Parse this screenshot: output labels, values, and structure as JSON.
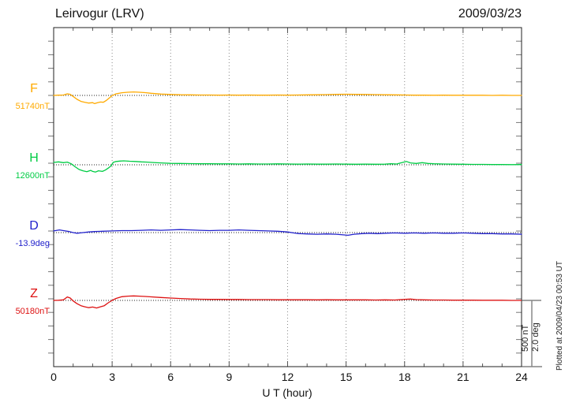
{
  "header": {
    "title": "Leirvogur (LRV)",
    "date": "2009/03/23"
  },
  "footer": {
    "plotted_at": "Plotted at 2009/04/23 00:53 UT"
  },
  "chart_data": {
    "type": "line",
    "title": "Leirvogur (LRV)",
    "date": "2009/03/23",
    "xlabel": "U T (hour)",
    "x_range": [
      0,
      24
    ],
    "x_major_ticks": [
      "0",
      "3",
      "6",
      "9",
      "12",
      "15",
      "18",
      "21",
      "24"
    ],
    "x_minor_step_hours": 1,
    "grid": "dotted vertical lines at 3-hour intervals",
    "scale_bar": {
      "label_nT": "500 nT",
      "label_deg": "2.0 deg",
      "span_nT": 500,
      "span_deg": 2.0
    },
    "colors": {
      "frame": "#222222",
      "grid": "#888888",
      "baseline": "#222222",
      "axis_tick": "#555555",
      "y_tick": "#777777",
      "scalebar": "#888888",
      "scalebar_cap": "#444444"
    },
    "series": [
      {
        "id": "F",
        "label": "F",
        "baseline_label": "51740nT",
        "unit": "nT",
        "color": "#FFAA00",
        "points": [
          [
            0,
            0
          ],
          [
            0.25,
            2
          ],
          [
            0.5,
            3
          ],
          [
            0.7,
            12
          ],
          [
            0.85,
            8
          ],
          [
            1.0,
            -8
          ],
          [
            1.2,
            -30
          ],
          [
            1.4,
            -45
          ],
          [
            1.6,
            -52
          ],
          [
            1.8,
            -58
          ],
          [
            2.0,
            -55
          ],
          [
            2.1,
            -62
          ],
          [
            2.25,
            -55
          ],
          [
            2.4,
            -50
          ],
          [
            2.55,
            -52
          ],
          [
            2.7,
            -38
          ],
          [
            2.85,
            -20
          ],
          [
            3.0,
            -2
          ],
          [
            3.2,
            12
          ],
          [
            3.5,
            20
          ],
          [
            3.8,
            24
          ],
          [
            4.1,
            26
          ],
          [
            4.4,
            24
          ],
          [
            4.7,
            21
          ],
          [
            5.0,
            16
          ],
          [
            5.5,
            10
          ],
          [
            6.0,
            7
          ],
          [
            6.5,
            5
          ],
          [
            7.0,
            4
          ],
          [
            7.5,
            3
          ],
          [
            8,
            3
          ],
          [
            8.5,
            2
          ],
          [
            9,
            3
          ],
          [
            9.5,
            2
          ],
          [
            10,
            3
          ],
          [
            10.5,
            2
          ],
          [
            11,
            2
          ],
          [
            11.5,
            3
          ],
          [
            12,
            2
          ],
          [
            12.5,
            3
          ],
          [
            13,
            4
          ],
          [
            13.5,
            5
          ],
          [
            14,
            6
          ],
          [
            14.5,
            8
          ],
          [
            15,
            9
          ],
          [
            15.5,
            8
          ],
          [
            16,
            7
          ],
          [
            16.5,
            6
          ],
          [
            17,
            5
          ],
          [
            17.5,
            4
          ],
          [
            18,
            3
          ],
          [
            18.5,
            2
          ],
          [
            19,
            2
          ],
          [
            19.5,
            1
          ],
          [
            20,
            2
          ],
          [
            20.5,
            1
          ],
          [
            21,
            1
          ],
          [
            21.5,
            1
          ],
          [
            22,
            1
          ],
          [
            22.5,
            0
          ],
          [
            23,
            1
          ],
          [
            23.5,
            0
          ],
          [
            24,
            0
          ]
        ]
      },
      {
        "id": "H",
        "label": "H",
        "baseline_label": "12600nT",
        "unit": "nT",
        "color": "#00CC44",
        "points": [
          [
            0,
            18
          ],
          [
            0.25,
            22
          ],
          [
            0.5,
            16
          ],
          [
            0.7,
            20
          ],
          [
            0.9,
            8
          ],
          [
            1.1,
            -15
          ],
          [
            1.3,
            -35
          ],
          [
            1.5,
            -45
          ],
          [
            1.7,
            -52
          ],
          [
            1.9,
            -42
          ],
          [
            2.0,
            -50
          ],
          [
            2.15,
            -55
          ],
          [
            2.3,
            -45
          ],
          [
            2.5,
            -50
          ],
          [
            2.65,
            -40
          ],
          [
            2.8,
            -25
          ],
          [
            2.95,
            -8
          ],
          [
            3.05,
            18
          ],
          [
            3.2,
            25
          ],
          [
            3.4,
            28
          ],
          [
            3.6,
            30
          ],
          [
            3.9,
            27
          ],
          [
            4.2,
            25
          ],
          [
            4.5,
            22
          ],
          [
            4.8,
            20
          ],
          [
            5.1,
            17
          ],
          [
            5.5,
            14
          ],
          [
            6,
            11
          ],
          [
            6.5,
            10
          ],
          [
            7,
            9
          ],
          [
            7.5,
            8
          ],
          [
            8,
            8
          ],
          [
            8.5,
            7
          ],
          [
            9,
            7
          ],
          [
            9.5,
            6
          ],
          [
            10,
            7
          ],
          [
            10.5,
            6
          ],
          [
            11,
            6
          ],
          [
            11.5,
            7
          ],
          [
            12,
            6
          ],
          [
            12.5,
            5
          ],
          [
            13,
            6
          ],
          [
            13.5,
            5
          ],
          [
            14,
            5
          ],
          [
            14.5,
            6
          ],
          [
            15,
            5
          ],
          [
            15.5,
            4
          ],
          [
            16,
            5
          ],
          [
            16.5,
            4
          ],
          [
            17,
            5
          ],
          [
            17.3,
            8
          ],
          [
            17.6,
            6
          ],
          [
            17.9,
            18
          ],
          [
            18.1,
            25
          ],
          [
            18.3,
            14
          ],
          [
            18.6,
            10
          ],
          [
            18.9,
            16
          ],
          [
            19.2,
            10
          ],
          [
            19.5,
            8
          ],
          [
            20,
            6
          ],
          [
            20.5,
            5
          ],
          [
            21,
            4
          ],
          [
            21.5,
            3
          ],
          [
            22,
            3
          ],
          [
            22.5,
            2
          ],
          [
            23,
            2
          ],
          [
            23.5,
            1
          ],
          [
            24,
            2
          ]
        ]
      },
      {
        "id": "D",
        "label": "D",
        "baseline_label": "-13.9deg",
        "unit": "deg",
        "color": "#2222CC",
        "points": [
          [
            0,
            0.05
          ],
          [
            0.3,
            0.08
          ],
          [
            0.5,
            0.06
          ],
          [
            0.8,
            0.03
          ],
          [
            1.0,
            0.0
          ],
          [
            1.2,
            -0.02
          ],
          [
            1.5,
            0.0
          ],
          [
            1.8,
            0.02
          ],
          [
            2.1,
            0.03
          ],
          [
            2.5,
            0.04
          ],
          [
            3.0,
            0.05
          ],
          [
            3.5,
            0.06
          ],
          [
            4.0,
            0.06
          ],
          [
            4.5,
            0.07
          ],
          [
            5.0,
            0.08
          ],
          [
            5.5,
            0.07
          ],
          [
            6.0,
            0.08
          ],
          [
            6.5,
            0.09
          ],
          [
            7.0,
            0.08
          ],
          [
            7.5,
            0.07
          ],
          [
            8.0,
            0.06
          ],
          [
            8.5,
            0.07
          ],
          [
            9.0,
            0.07
          ],
          [
            9.5,
            0.08
          ],
          [
            10,
            0.07
          ],
          [
            10.5,
            0.06
          ],
          [
            11,
            0.05
          ],
          [
            11.5,
            0.04
          ],
          [
            12,
            0.02
          ],
          [
            12.3,
            -0.01
          ],
          [
            12.6,
            -0.03
          ],
          [
            13,
            -0.04
          ],
          [
            13.5,
            -0.05
          ],
          [
            14,
            -0.04
          ],
          [
            14.5,
            -0.05
          ],
          [
            15.1,
            -0.08
          ],
          [
            15.4,
            -0.05
          ],
          [
            15.8,
            -0.03
          ],
          [
            16.2,
            -0.02
          ],
          [
            16.6,
            -0.03
          ],
          [
            17,
            -0.02
          ],
          [
            17.5,
            -0.01
          ],
          [
            18,
            -0.02
          ],
          [
            18.5,
            -0.01
          ],
          [
            19,
            -0.02
          ],
          [
            19.5,
            -0.01
          ],
          [
            20,
            -0.02
          ],
          [
            20.5,
            -0.02
          ],
          [
            21,
            -0.01
          ],
          [
            21.5,
            -0.02
          ],
          [
            22,
            -0.03
          ],
          [
            22.5,
            -0.03
          ],
          [
            23,
            -0.04
          ],
          [
            23.5,
            -0.04
          ],
          [
            24,
            -0.05
          ]
        ]
      },
      {
        "id": "Z",
        "label": "Z",
        "baseline_label": "50180nT",
        "unit": "nT",
        "color": "#DD1111",
        "points": [
          [
            0,
            0
          ],
          [
            0.25,
            1
          ],
          [
            0.5,
            4
          ],
          [
            0.7,
            26
          ],
          [
            0.85,
            18
          ],
          [
            1.0,
            -4
          ],
          [
            1.2,
            -25
          ],
          [
            1.4,
            -40
          ],
          [
            1.6,
            -48
          ],
          [
            1.8,
            -55
          ],
          [
            2.0,
            -50
          ],
          [
            2.2,
            -57
          ],
          [
            2.4,
            -48
          ],
          [
            2.6,
            -40
          ],
          [
            2.8,
            -18
          ],
          [
            3.0,
            0
          ],
          [
            3.2,
            15
          ],
          [
            3.5,
            28
          ],
          [
            3.8,
            32
          ],
          [
            4.1,
            34
          ],
          [
            4.4,
            32
          ],
          [
            4.7,
            30
          ],
          [
            5.0,
            27
          ],
          [
            5.5,
            22
          ],
          [
            6.0,
            18
          ],
          [
            6.5,
            14
          ],
          [
            7.0,
            11
          ],
          [
            7.5,
            9
          ],
          [
            8,
            8
          ],
          [
            8.5,
            8
          ],
          [
            9,
            7
          ],
          [
            9.5,
            7
          ],
          [
            10,
            6
          ],
          [
            10.5,
            6
          ],
          [
            11,
            6
          ],
          [
            11.5,
            5
          ],
          [
            12,
            5
          ],
          [
            12.5,
            5
          ],
          [
            13,
            5
          ],
          [
            13.5,
            4
          ],
          [
            14,
            5
          ],
          [
            14.5,
            4
          ],
          [
            15,
            4
          ],
          [
            15.5,
            4
          ],
          [
            16,
            4
          ],
          [
            16.5,
            3
          ],
          [
            17,
            4
          ],
          [
            17.5,
            3
          ],
          [
            18,
            8
          ],
          [
            18.3,
            10
          ],
          [
            18.6,
            6
          ],
          [
            19,
            4
          ],
          [
            19.5,
            3
          ],
          [
            20,
            3
          ],
          [
            20.5,
            2
          ],
          [
            21,
            2
          ],
          [
            21.5,
            2
          ],
          [
            22,
            1
          ],
          [
            22.5,
            1
          ],
          [
            23,
            1
          ],
          [
            23.5,
            0
          ],
          [
            24,
            0
          ]
        ]
      }
    ]
  }
}
